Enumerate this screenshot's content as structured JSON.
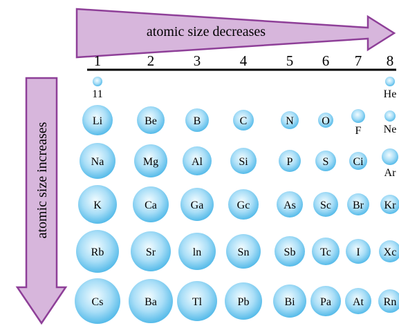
{
  "title_arrows": {
    "horizontal_label": "atomic size decreases",
    "vertical_label": "atomic size increases"
  },
  "groups": [
    "1",
    "2",
    "3",
    "4",
    "5",
    "6",
    "7",
    "8"
  ],
  "row0": [
    {
      "symbol": "11",
      "group": 1
    },
    {
      "symbol": "He",
      "group": 8
    }
  ],
  "rows": [
    [
      {
        "symbol": "Li",
        "group": 1
      },
      {
        "symbol": "Be",
        "group": 2
      },
      {
        "symbol": "B",
        "group": 3
      },
      {
        "symbol": "C",
        "group": 4
      },
      {
        "symbol": "N",
        "group": 5
      },
      {
        "symbol": "O",
        "group": 6
      },
      {
        "symbol": "F",
        "group": 7
      },
      {
        "symbol": "Ne",
        "group": 8
      }
    ],
    [
      {
        "symbol": "Na",
        "group": 1
      },
      {
        "symbol": "Mg",
        "group": 2
      },
      {
        "symbol": "Al",
        "group": 3
      },
      {
        "symbol": "Si",
        "group": 4
      },
      {
        "symbol": "P",
        "group": 5
      },
      {
        "symbol": "S",
        "group": 6
      },
      {
        "symbol": "Ci",
        "group": 7
      },
      {
        "symbol": "Ar",
        "group": 8
      }
    ],
    [
      {
        "symbol": "K",
        "group": 1
      },
      {
        "symbol": "Ca",
        "group": 2
      },
      {
        "symbol": "Ga",
        "group": 3
      },
      {
        "symbol": "Gc",
        "group": 4
      },
      {
        "symbol": "As",
        "group": 5
      },
      {
        "symbol": "Sc",
        "group": 6
      },
      {
        "symbol": "Br",
        "group": 7
      },
      {
        "symbol": "Kr",
        "group": 8
      }
    ],
    [
      {
        "symbol": "Rb",
        "group": 1
      },
      {
        "symbol": "Sr",
        "group": 2
      },
      {
        "symbol": "ln",
        "group": 3
      },
      {
        "symbol": "Sn",
        "group": 4
      },
      {
        "symbol": "Sb",
        "group": 5
      },
      {
        "symbol": "Tc",
        "group": 6
      },
      {
        "symbol": "I",
        "group": 7
      },
      {
        "symbol": "Xc",
        "group": 8
      }
    ],
    [
      {
        "symbol": "Cs",
        "group": 1
      },
      {
        "symbol": "Ba",
        "group": 2
      },
      {
        "symbol": "Tl",
        "group": 3
      },
      {
        "symbol": "Pb",
        "group": 4
      },
      {
        "symbol": "Bi",
        "group": 5
      },
      {
        "symbol": "Pa",
        "group": 6
      },
      {
        "symbol": "At",
        "group": 7
      },
      {
        "symbol": "Rn",
        "group": 8
      }
    ]
  ],
  "colors": {
    "arrow_fill": "#d7b6dc",
    "arrow_stroke": "#8e3f98",
    "sphere_center": "#f2fcff",
    "sphere_edge": "#4fb8e8"
  }
}
